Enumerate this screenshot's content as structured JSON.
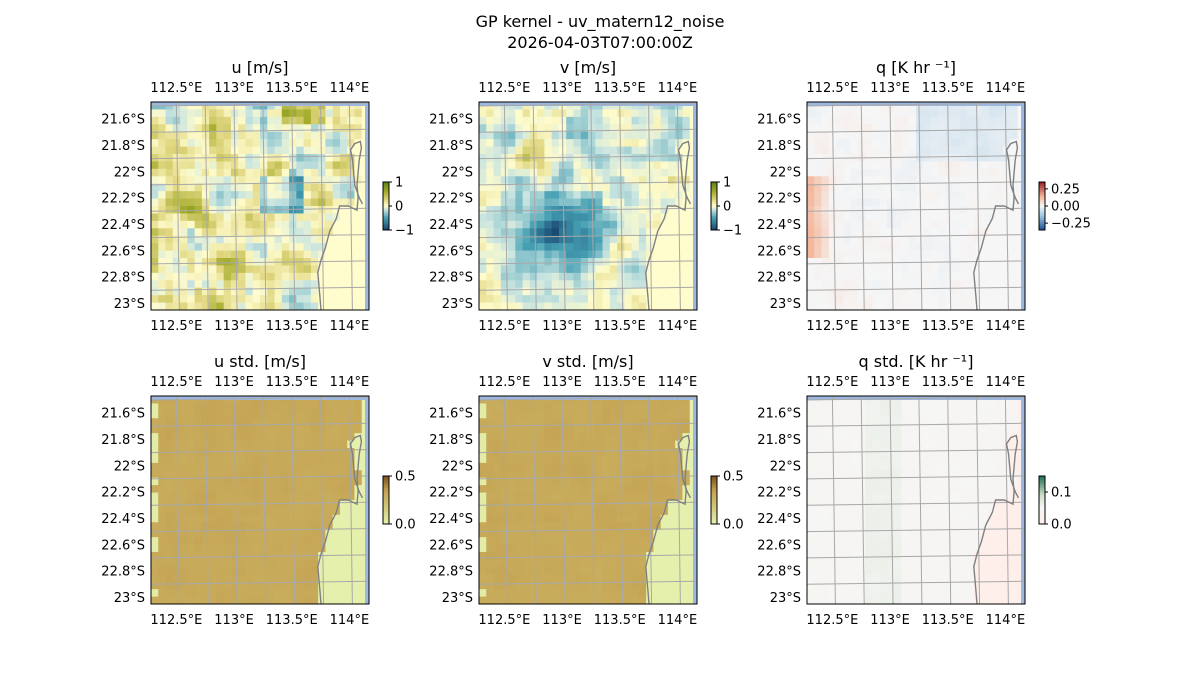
{
  "figure": {
    "title_line1": "GP kernel - uv_matern12_noise",
    "title_line2": "2026-04-03T07:00:00Z"
  },
  "chart_data": [
    {
      "type": "heatmap",
      "title": "u [m/s]",
      "x_ticks": [
        "112.5°E",
        "113°E",
        "113.5°E",
        "114°E"
      ],
      "y_ticks": [
        "21.6°S",
        "21.8°S",
        "22°S",
        "22.2°S",
        "22.4°S",
        "22.6°S",
        "22.8°S",
        "23°S"
      ],
      "colorbar": {
        "ticks": [
          "1",
          "0",
          "−1"
        ],
        "range": [
          -1,
          1
        ],
        "colormap": "brown-yellow-teal (BrBG-like, yellow at 0)"
      },
      "field_description": "mostly pale yellow to olive-green positive values, light blue patches"
    },
    {
      "type": "heatmap",
      "title": "v [m/s]",
      "x_ticks": [
        "112.5°E",
        "113°E",
        "113.5°E",
        "114°E"
      ],
      "y_ticks": [
        "21.6°S",
        "21.8°S",
        "22°S",
        "22.2°S",
        "22.4°S",
        "22.6°S",
        "22.8°S",
        "23°S"
      ],
      "colorbar": {
        "ticks": [
          "1",
          "0",
          "−1"
        ],
        "range": [
          -1,
          1
        ],
        "colormap": "brown-yellow-teal (BrBG-like, yellow at 0)"
      },
      "field_description": "teal negative values in center-southwest, yellow elsewhere"
    },
    {
      "type": "heatmap",
      "title": "q [K hr ⁻¹]",
      "x_ticks": [
        "112.5°E",
        "113°E",
        "113.5°E",
        "114°E"
      ],
      "y_ticks": [
        "21.6°S",
        "21.8°S",
        "22°S",
        "22.2°S",
        "22.4°S",
        "22.6°S",
        "22.8°S",
        "23°S"
      ],
      "colorbar": {
        "ticks": [
          "0.25",
          "0.00",
          "−0.25"
        ],
        "range": [
          -0.35,
          0.35
        ],
        "colormap": "RdBu_r"
      },
      "field_description": "near zero, light red at west edge, light blue patches"
    },
    {
      "type": "heatmap",
      "title": "u std. [m/s]",
      "x_ticks": [
        "112.5°E",
        "113°E",
        "113.5°E",
        "114°E"
      ],
      "y_ticks": [
        "21.6°S",
        "21.8°S",
        "22°S",
        "22.2°S",
        "22.4°S",
        "22.6°S",
        "22.8°S",
        "23°S"
      ],
      "colorbar": {
        "ticks": [
          "0.5",
          "0.0"
        ],
        "range": [
          0,
          0.5
        ],
        "colormap": "yellow-green to brown"
      },
      "field_description": "tan/brown over ocean, light green over land"
    },
    {
      "type": "heatmap",
      "title": "v std. [m/s]",
      "x_ticks": [
        "112.5°E",
        "113°E",
        "113.5°E",
        "114°E"
      ],
      "y_ticks": [
        "21.6°S",
        "21.8°S",
        "22°S",
        "22.2°S",
        "22.4°S",
        "22.6°S",
        "22.8°S",
        "23°S"
      ],
      "colorbar": {
        "ticks": [
          "0.5",
          "0.0"
        ],
        "range": [
          0,
          0.5
        ],
        "colormap": "yellow-green to brown"
      },
      "field_description": "tan/brown over ocean, light green over land"
    },
    {
      "type": "heatmap",
      "title": "q std. [K hr ⁻¹]",
      "x_ticks": [
        "112.5°E",
        "113°E",
        "113.5°E",
        "114°E"
      ],
      "y_ticks": [
        "21.6°S",
        "21.8°S",
        "22°S",
        "22.2°S",
        "22.4°S",
        "22.6°S",
        "22.8°S",
        "23°S"
      ],
      "colorbar": {
        "ticks": [
          "0.1",
          "0.0"
        ],
        "range": [
          0,
          0.15
        ],
        "colormap": "pink-white-green"
      },
      "field_description": "very pale, faint green tint, pinkish over land"
    }
  ]
}
